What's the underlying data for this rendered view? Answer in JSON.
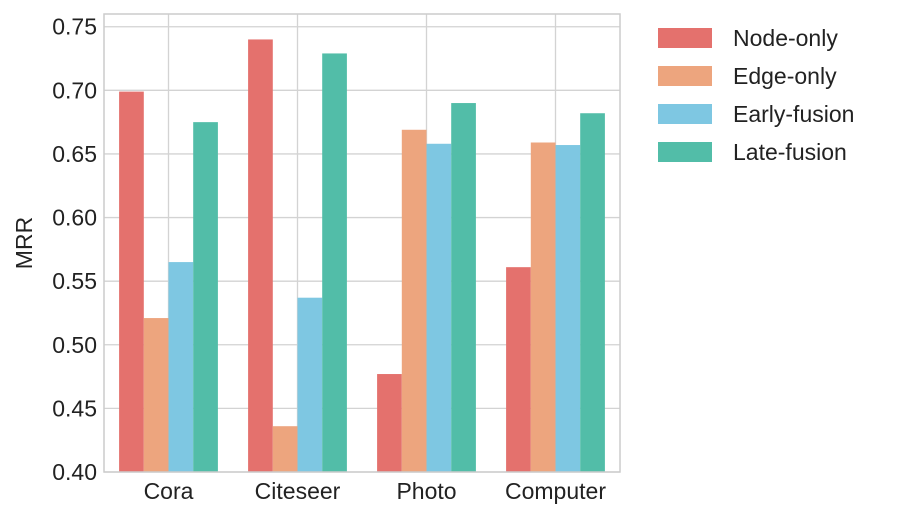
{
  "chart_data": {
    "type": "bar",
    "title": "",
    "xlabel": "",
    "ylabel": "MRR",
    "ylim": [
      0.4,
      0.76
    ],
    "yticks": [
      "0.40",
      "0.45",
      "0.50",
      "0.55",
      "0.60",
      "0.65",
      "0.70",
      "0.75"
    ],
    "categories": [
      "Cora",
      "Citeseer",
      "Photo",
      "Computer"
    ],
    "series": [
      {
        "name": "Node-only",
        "color": "#E4716D",
        "values": [
          0.699,
          0.74,
          0.477,
          0.561
        ]
      },
      {
        "name": "Edge-only",
        "color": "#EDA57E",
        "values": [
          0.521,
          0.436,
          0.669,
          0.659
        ]
      },
      {
        "name": "Early-fusion",
        "color": "#7EC7E2",
        "values": [
          0.565,
          0.537,
          0.658,
          0.657
        ]
      },
      {
        "name": "Late-fusion",
        "color": "#52BDA8",
        "values": [
          0.675,
          0.729,
          0.69,
          0.682
        ]
      }
    ],
    "grid": true,
    "legend_position": "outside-top-right"
  }
}
